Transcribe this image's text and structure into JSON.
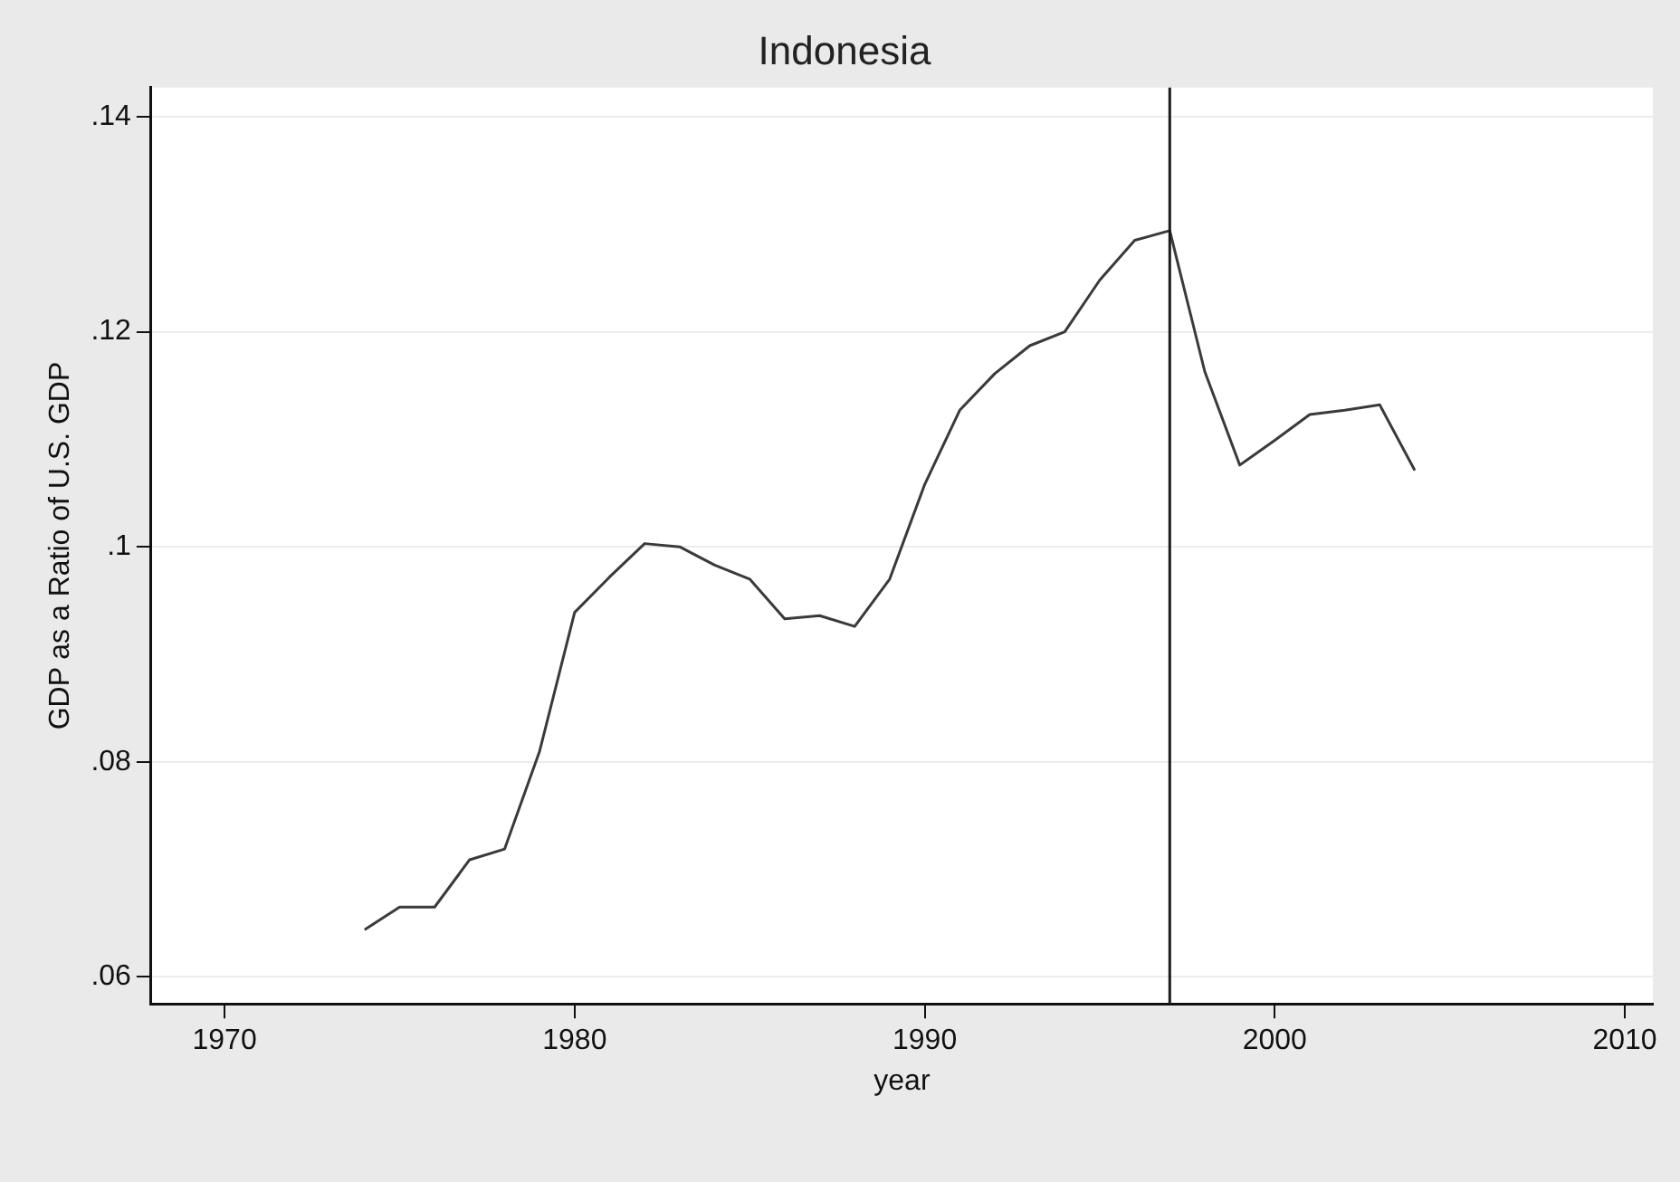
{
  "chart_data": {
    "type": "line",
    "title": "Indonesia",
    "xlabel": "year",
    "ylabel": "GDP as a Ratio of U.S. GDP",
    "x": [
      1974,
      1975,
      1976,
      1977,
      1978,
      1979,
      1980,
      1981,
      1982,
      1983,
      1984,
      1985,
      1986,
      1987,
      1988,
      1989,
      1990,
      1991,
      1992,
      1993,
      1994,
      1995,
      1996,
      1997,
      1998,
      1999,
      2000,
      2001,
      2002,
      2003,
      2004
    ],
    "series": [
      {
        "color": "#3a3a3a",
        "values": [
          0.0644,
          0.0665,
          0.0665,
          0.0709,
          0.0719,
          0.081,
          0.0939,
          0.0972,
          0.1003,
          0.1,
          0.0983,
          0.097,
          0.0933,
          0.0936,
          0.0926,
          0.097,
          0.1058,
          0.1127,
          0.1161,
          0.1187,
          0.12,
          0.1248,
          0.1285,
          0.1294,
          0.1163,
          0.1076,
          0.1099,
          0.1123,
          0.1127,
          0.1132,
          0.1071
        ]
      }
    ],
    "xlim": [
      1967.9,
      2010.8
    ],
    "xticks": [
      1970,
      1980,
      1990,
      2000,
      2010
    ],
    "ylim": [
      0.0575,
      0.1427
    ],
    "yticks": [
      {
        "value": 0.06,
        "label": ".06"
      },
      {
        "value": 0.08,
        "label": ".08"
      },
      {
        "value": 0.1,
        "label": ".1"
      },
      {
        "value": 0.12,
        "label": ".12"
      },
      {
        "value": 0.14,
        "label": ".14"
      }
    ],
    "ref_lines": [
      {
        "axis": "x",
        "value": 1997,
        "color": "#1a1a1a"
      }
    ],
    "grid": "y",
    "legend": false,
    "marker": "none",
    "line_style": "solid"
  }
}
